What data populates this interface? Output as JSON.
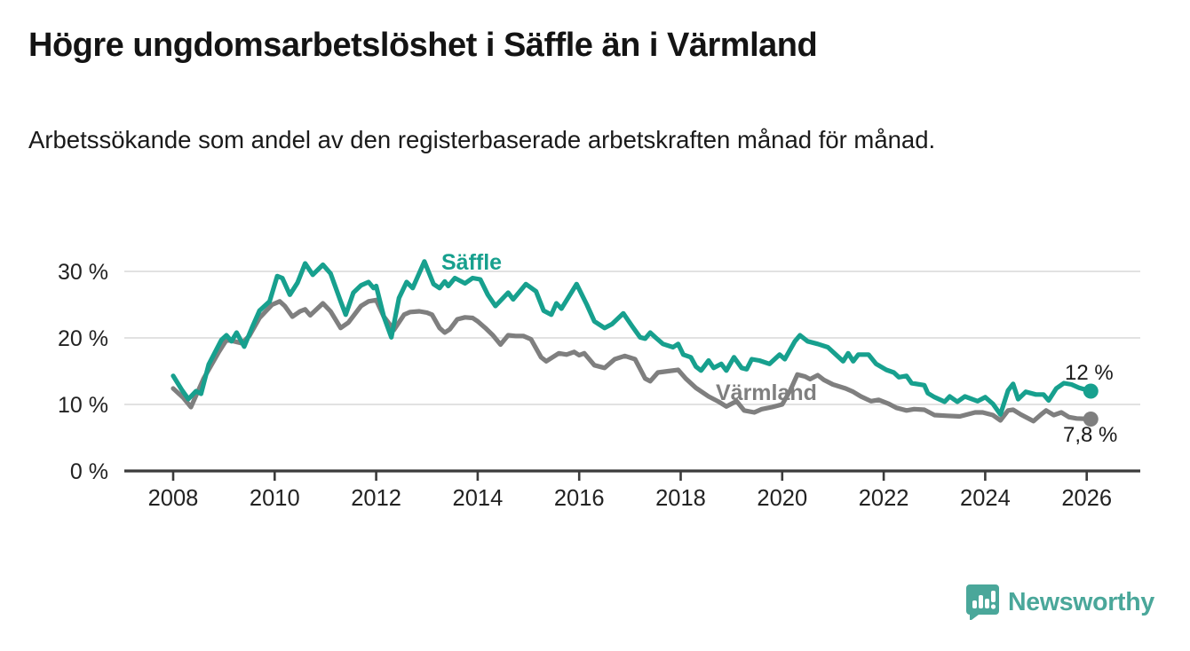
{
  "header": {
    "title": "Högre ungdomsarbetslöshet i Säffle än i Värmland",
    "subtitle": "Arbetssökande som andel av den registerbaserade arbetskraften månad för månad."
  },
  "chart_data": {
    "type": "line",
    "title": "Högre ungdomsarbetslöshet i Säffle än i Värmland",
    "subtitle": "Arbetssökande som andel av den registerbaserade arbetskraften månad för månad.",
    "unit": "%",
    "x_axis": {
      "label": "",
      "range": [
        2007.05,
        2027.05
      ],
      "ticks": [
        2008,
        2010,
        2012,
        2014,
        2016,
        2018,
        2020,
        2022,
        2024,
        2026
      ]
    },
    "y_axis": {
      "label": "",
      "range": [
        0,
        33
      ],
      "ticks": [
        {
          "value": 0,
          "label": "0 %"
        },
        {
          "value": 10,
          "label": "10 %"
        },
        {
          "value": 20,
          "label": "20 %"
        },
        {
          "value": 30,
          "label": "30 %"
        }
      ]
    },
    "grid": true,
    "legend_position": "inline-labels",
    "series": [
      {
        "name": "Värmland",
        "color": "#7f7f7f",
        "end_label": "7,8 %",
        "end_value": 7.8,
        "points": [
          [
            2008.0,
            12.4
          ],
          [
            2008.2,
            11.0
          ],
          [
            2008.35,
            9.6
          ],
          [
            2008.6,
            13.9
          ],
          [
            2008.9,
            17.9
          ],
          [
            2009.05,
            19.7
          ],
          [
            2009.2,
            19.5
          ],
          [
            2009.35,
            19.2
          ],
          [
            2009.5,
            20.3
          ],
          [
            2009.7,
            23.0
          ],
          [
            2009.95,
            25.0
          ],
          [
            2010.1,
            25.5
          ],
          [
            2010.2,
            24.8
          ],
          [
            2010.35,
            23.2
          ],
          [
            2010.5,
            24.0
          ],
          [
            2010.6,
            24.3
          ],
          [
            2010.7,
            23.4
          ],
          [
            2010.95,
            25.2
          ],
          [
            2011.1,
            24.0
          ],
          [
            2011.3,
            21.5
          ],
          [
            2011.45,
            22.3
          ],
          [
            2011.7,
            24.8
          ],
          [
            2011.85,
            25.5
          ],
          [
            2012.0,
            25.7
          ],
          [
            2012.15,
            23.2
          ],
          [
            2012.35,
            21.2
          ],
          [
            2012.55,
            23.5
          ],
          [
            2012.67,
            23.9
          ],
          [
            2012.85,
            24.0
          ],
          [
            2013.0,
            23.8
          ],
          [
            2013.1,
            23.5
          ],
          [
            2013.25,
            21.5
          ],
          [
            2013.35,
            20.8
          ],
          [
            2013.45,
            21.3
          ],
          [
            2013.6,
            22.8
          ],
          [
            2013.75,
            23.1
          ],
          [
            2013.9,
            23.0
          ],
          [
            2014.0,
            22.5
          ],
          [
            2014.15,
            21.5
          ],
          [
            2014.3,
            20.4
          ],
          [
            2014.45,
            19.0
          ],
          [
            2014.6,
            20.4
          ],
          [
            2014.75,
            20.3
          ],
          [
            2014.9,
            20.3
          ],
          [
            2015.05,
            19.8
          ],
          [
            2015.25,
            17.1
          ],
          [
            2015.35,
            16.5
          ],
          [
            2015.6,
            17.7
          ],
          [
            2015.75,
            17.5
          ],
          [
            2015.9,
            17.9
          ],
          [
            2016.0,
            17.4
          ],
          [
            2016.1,
            17.7
          ],
          [
            2016.3,
            15.9
          ],
          [
            2016.5,
            15.5
          ],
          [
            2016.7,
            16.8
          ],
          [
            2016.9,
            17.3
          ],
          [
            2017.1,
            16.8
          ],
          [
            2017.3,
            13.9
          ],
          [
            2017.4,
            13.5
          ],
          [
            2017.55,
            14.8
          ],
          [
            2017.75,
            15.0
          ],
          [
            2017.95,
            15.2
          ],
          [
            2018.1,
            13.9
          ],
          [
            2018.3,
            12.5
          ],
          [
            2018.55,
            11.2
          ],
          [
            2018.75,
            10.4
          ],
          [
            2018.9,
            9.7
          ],
          [
            2019.1,
            10.5
          ],
          [
            2019.25,
            9.1
          ],
          [
            2019.45,
            8.8
          ],
          [
            2019.6,
            9.3
          ],
          [
            2019.8,
            9.6
          ],
          [
            2020.0,
            10.0
          ],
          [
            2020.15,
            12.0
          ],
          [
            2020.3,
            14.5
          ],
          [
            2020.45,
            14.2
          ],
          [
            2020.55,
            13.8
          ],
          [
            2020.7,
            14.4
          ],
          [
            2020.82,
            13.7
          ],
          [
            2021.0,
            13.0
          ],
          [
            2021.25,
            12.4
          ],
          [
            2021.4,
            11.9
          ],
          [
            2021.55,
            11.2
          ],
          [
            2021.75,
            10.5
          ],
          [
            2021.9,
            10.7
          ],
          [
            2022.1,
            10.1
          ],
          [
            2022.25,
            9.5
          ],
          [
            2022.45,
            9.1
          ],
          [
            2022.6,
            9.3
          ],
          [
            2022.8,
            9.2
          ],
          [
            2023.0,
            8.4
          ],
          [
            2023.25,
            8.3
          ],
          [
            2023.5,
            8.2
          ],
          [
            2023.6,
            8.4
          ],
          [
            2023.8,
            8.8
          ],
          [
            2023.95,
            8.8
          ],
          [
            2024.15,
            8.4
          ],
          [
            2024.3,
            7.6
          ],
          [
            2024.45,
            9.1
          ],
          [
            2024.55,
            9.2
          ],
          [
            2024.7,
            8.5
          ],
          [
            2024.85,
            7.9
          ],
          [
            2024.95,
            7.5
          ],
          [
            2025.1,
            8.5
          ],
          [
            2025.2,
            9.1
          ],
          [
            2025.35,
            8.4
          ],
          [
            2025.5,
            8.8
          ],
          [
            2025.65,
            8.1
          ],
          [
            2025.8,
            7.9
          ],
          [
            2026.08,
            7.8
          ]
        ]
      },
      {
        "name": "Säffle",
        "color": "#17a08e",
        "end_label": "12 %",
        "end_value": 12,
        "points": [
          [
            2008.0,
            14.3
          ],
          [
            2008.17,
            12.2
          ],
          [
            2008.3,
            10.8
          ],
          [
            2008.45,
            12.0
          ],
          [
            2008.55,
            11.6
          ],
          [
            2008.7,
            16.0
          ],
          [
            2008.95,
            19.7
          ],
          [
            2009.05,
            20.4
          ],
          [
            2009.15,
            19.5
          ],
          [
            2009.25,
            20.8
          ],
          [
            2009.4,
            18.7
          ],
          [
            2009.55,
            21.5
          ],
          [
            2009.7,
            24.1
          ],
          [
            2009.9,
            25.5
          ],
          [
            2010.05,
            29.3
          ],
          [
            2010.15,
            29.0
          ],
          [
            2010.3,
            26.5
          ],
          [
            2010.45,
            28.3
          ],
          [
            2010.6,
            31.2
          ],
          [
            2010.75,
            29.5
          ],
          [
            2010.95,
            31.0
          ],
          [
            2011.1,
            29.7
          ],
          [
            2011.3,
            25.5
          ],
          [
            2011.4,
            23.5
          ],
          [
            2011.55,
            26.8
          ],
          [
            2011.7,
            27.9
          ],
          [
            2011.85,
            28.4
          ],
          [
            2011.95,
            27.5
          ],
          [
            2012.0,
            27.8
          ],
          [
            2012.15,
            23.2
          ],
          [
            2012.3,
            20.1
          ],
          [
            2012.45,
            26.0
          ],
          [
            2012.6,
            28.4
          ],
          [
            2012.72,
            27.5
          ],
          [
            2012.95,
            31.5
          ],
          [
            2013.13,
            28.1
          ],
          [
            2013.25,
            27.5
          ],
          [
            2013.35,
            28.5
          ],
          [
            2013.42,
            27.8
          ],
          [
            2013.55,
            29.0
          ],
          [
            2013.75,
            28.2
          ],
          [
            2013.9,
            29.0
          ],
          [
            2014.05,
            28.8
          ],
          [
            2014.2,
            26.5
          ],
          [
            2014.35,
            24.8
          ],
          [
            2014.6,
            26.8
          ],
          [
            2014.7,
            25.8
          ],
          [
            2014.95,
            28.1
          ],
          [
            2015.15,
            27.0
          ],
          [
            2015.3,
            24.1
          ],
          [
            2015.45,
            23.5
          ],
          [
            2015.55,
            25.2
          ],
          [
            2015.65,
            24.4
          ],
          [
            2015.95,
            28.1
          ],
          [
            2016.15,
            25.0
          ],
          [
            2016.3,
            22.5
          ],
          [
            2016.5,
            21.5
          ],
          [
            2016.65,
            22.1
          ],
          [
            2016.87,
            23.7
          ],
          [
            2017.05,
            21.7
          ],
          [
            2017.2,
            20.1
          ],
          [
            2017.3,
            19.9
          ],
          [
            2017.4,
            20.8
          ],
          [
            2017.5,
            20.1
          ],
          [
            2017.65,
            19.1
          ],
          [
            2017.85,
            18.6
          ],
          [
            2017.95,
            19.1
          ],
          [
            2018.05,
            17.5
          ],
          [
            2018.2,
            17.1
          ],
          [
            2018.3,
            15.7
          ],
          [
            2018.4,
            15.1
          ],
          [
            2018.55,
            16.6
          ],
          [
            2018.65,
            15.5
          ],
          [
            2018.8,
            16.1
          ],
          [
            2018.9,
            15.1
          ],
          [
            2019.05,
            17.1
          ],
          [
            2019.2,
            15.5
          ],
          [
            2019.3,
            15.3
          ],
          [
            2019.4,
            16.8
          ],
          [
            2019.55,
            16.6
          ],
          [
            2019.75,
            16.1
          ],
          [
            2019.95,
            17.5
          ],
          [
            2020.05,
            16.8
          ],
          [
            2020.25,
            19.5
          ],
          [
            2020.35,
            20.4
          ],
          [
            2020.5,
            19.5
          ],
          [
            2020.7,
            19.1
          ],
          [
            2020.9,
            18.6
          ],
          [
            2021.2,
            16.5
          ],
          [
            2021.3,
            17.7
          ],
          [
            2021.4,
            16.5
          ],
          [
            2021.5,
            17.5
          ],
          [
            2021.7,
            17.5
          ],
          [
            2021.85,
            16.1
          ],
          [
            2022.05,
            15.2
          ],
          [
            2022.2,
            14.8
          ],
          [
            2022.3,
            14.1
          ],
          [
            2022.45,
            14.3
          ],
          [
            2022.55,
            13.2
          ],
          [
            2022.8,
            12.9
          ],
          [
            2022.87,
            11.7
          ],
          [
            2023.0,
            11.1
          ],
          [
            2023.2,
            10.4
          ],
          [
            2023.3,
            11.2
          ],
          [
            2023.45,
            10.4
          ],
          [
            2023.6,
            11.2
          ],
          [
            2023.85,
            10.5
          ],
          [
            2024.0,
            11.1
          ],
          [
            2024.15,
            10.1
          ],
          [
            2024.3,
            8.5
          ],
          [
            2024.45,
            12.1
          ],
          [
            2024.55,
            13.1
          ],
          [
            2024.65,
            10.8
          ],
          [
            2024.8,
            11.9
          ],
          [
            2024.9,
            11.7
          ],
          [
            2025.0,
            11.5
          ],
          [
            2025.15,
            11.5
          ],
          [
            2025.25,
            10.6
          ],
          [
            2025.4,
            12.4
          ],
          [
            2025.55,
            13.2
          ],
          [
            2025.7,
            13.0
          ],
          [
            2025.85,
            12.5
          ],
          [
            2026.08,
            12.0
          ]
        ]
      }
    ]
  },
  "footer": {
    "brand": "Newsworthy",
    "logo_icon": "bar-chart-speech-bubble-icon"
  },
  "colors": {
    "saffle_line": "#17a08e",
    "varmland_line": "#7f7f7f",
    "brand_teal": "#4aa79a",
    "gridline": "#d9d9d9",
    "axis": "#3b3b3b",
    "text": "#141414"
  }
}
